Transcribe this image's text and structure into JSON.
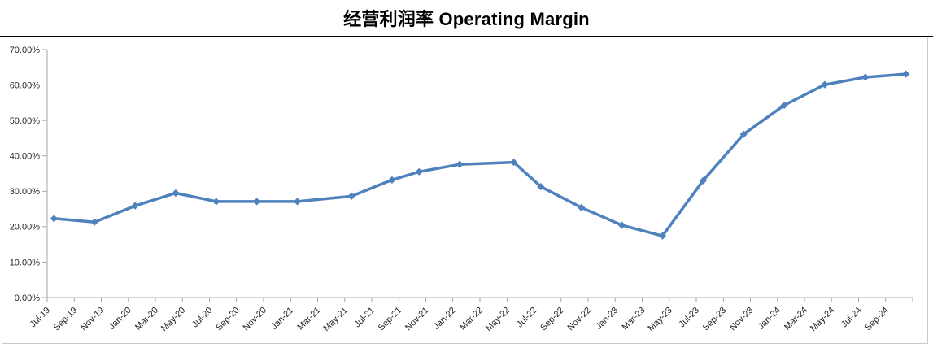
{
  "title": "经营利润率 Operating Margin",
  "colors": {
    "line": "#4F81BD",
    "marker": "#4F81BD",
    "axis": "#A6A6A6",
    "tick_text": "#262626",
    "title_text": "#000000",
    "title_rule": "#000000",
    "frame_border": "#CCCCCC"
  },
  "chart_data": {
    "type": "line",
    "title": "经营利润率 Operating Margin",
    "xlabel": "",
    "ylabel": "",
    "ylim": [
      0,
      70
    ],
    "y_unit": "%",
    "grid": false,
    "legend": "none",
    "marker_style": "diamond",
    "y_tick_labels": [
      "0.00%",
      "10.00%",
      "20.00%",
      "30.00%",
      "40.00%",
      "50.00%",
      "60.00%",
      "70.00%"
    ],
    "x_tick_labels": [
      "Jul-19",
      "Sep-19",
      "Nov-19",
      "Jan-20",
      "Mar-20",
      "May-20",
      "Jul-20",
      "Sep-20",
      "Nov-20",
      "Jan-21",
      "Mar-21",
      "May-21",
      "Jul-21",
      "Sep-21",
      "Nov-21",
      "Jan-22",
      "Mar-22",
      "May-22",
      "Jul-22",
      "Sep-22",
      "Nov-22",
      "Jan-23",
      "Mar-23",
      "May-23",
      "Jul-23",
      "Sep-23",
      "Nov-23",
      "Jan-24",
      "Mar-24",
      "May-24",
      "Jul-24",
      "Sep-24"
    ],
    "series": [
      {
        "name": "Operating Margin",
        "points": [
          {
            "date": "Jul-19",
            "value": 22.3
          },
          {
            "date": "Oct-19",
            "value": 21.3
          },
          {
            "date": "Jan-20",
            "value": 25.9
          },
          {
            "date": "Apr-20",
            "value": 29.5
          },
          {
            "date": "Jul-20",
            "value": 27.1
          },
          {
            "date": "Oct-20",
            "value": 27.1
          },
          {
            "date": "Jan-21",
            "value": 27.1
          },
          {
            "date": "May-21",
            "value": 28.6
          },
          {
            "date": "Aug-21",
            "value": 33.2
          },
          {
            "date": "Oct-21",
            "value": 35.5
          },
          {
            "date": "Jan-22",
            "value": 37.6
          },
          {
            "date": "May-22",
            "value": 38.2
          },
          {
            "date": "Jul-22",
            "value": 31.3
          },
          {
            "date": "Oct-22",
            "value": 25.4
          },
          {
            "date": "Jan-23",
            "value": 20.4
          },
          {
            "date": "Apr-23",
            "value": 17.4
          },
          {
            "date": "Jul-23",
            "value": 33.0
          },
          {
            "date": "Oct-23",
            "value": 46.1
          },
          {
            "date": "Jan-24",
            "value": 54.3
          },
          {
            "date": "Apr-24",
            "value": 60.1
          },
          {
            "date": "Jul-24",
            "value": 62.2
          },
          {
            "date": "Oct-24",
            "value": 63.1
          }
        ]
      }
    ]
  }
}
